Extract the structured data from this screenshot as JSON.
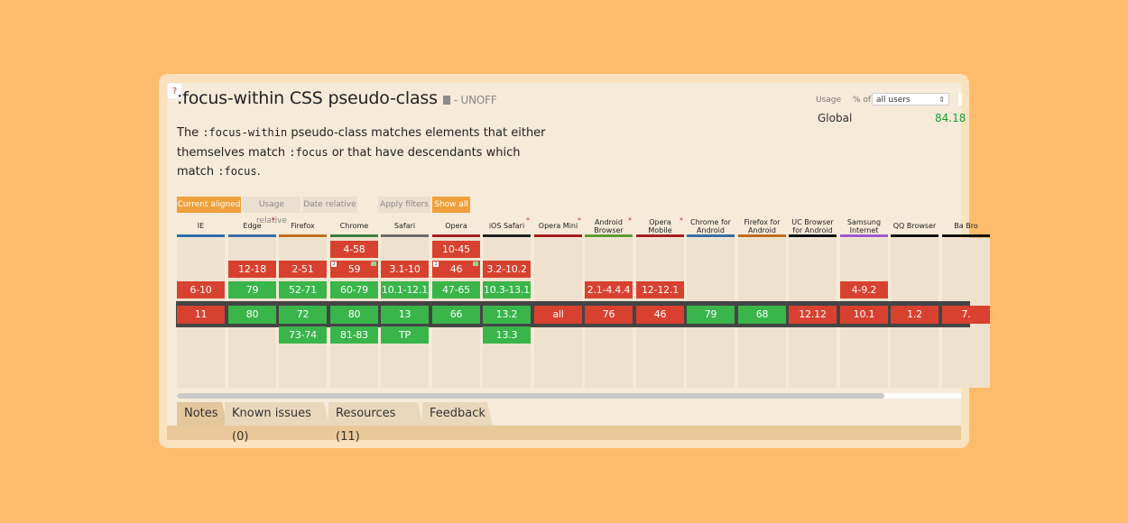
{
  "feature": {
    "title": ":focus-within CSS pseudo-class",
    "status": "- UNOFF",
    "desc": {
      "p1": "The ",
      "c1": ":focus-within",
      "p2": " pseudo-class matches elements that either themselves match ",
      "c2": ":focus",
      "p3": " or that have descendants which match ",
      "c3": ":focus",
      "p4": "."
    }
  },
  "usage": {
    "label": "Usage",
    "pct_label": "% of",
    "select": "all users",
    "global_label": "Global",
    "global_value": "84.18"
  },
  "view_buttons": {
    "current": "Current aligned",
    "usage": "Usage relative",
    "date": "Date relative",
    "apply": "Apply filters",
    "show": "Show all",
    "help": "?"
  },
  "colors": {
    "supported": "#39b54a",
    "unsupported": "#d8412f",
    "accent": "#f0a03a",
    "background": "#ffbb6c"
  },
  "browsers": [
    {
      "name": "IE",
      "bar": "#2b6cb0",
      "asterisk": false,
      "versions": [
        {
          "v": "6-10",
          "s": "n",
          "row": 3
        },
        {
          "v": "11",
          "s": "n",
          "row": 4
        }
      ]
    },
    {
      "name": "Edge",
      "bar": "#3a6ea5",
      "asterisk": true,
      "versions": [
        {
          "v": "12-18",
          "s": "n",
          "row": 2
        },
        {
          "v": "79",
          "s": "y",
          "row": 3
        },
        {
          "v": "80",
          "s": "y",
          "row": 4
        }
      ]
    },
    {
      "name": "Firefox",
      "bar": "#c26b1e",
      "asterisk": false,
      "versions": [
        {
          "v": "2-51",
          "s": "n",
          "row": 2
        },
        {
          "v": "52-71",
          "s": "y",
          "row": 3
        },
        {
          "v": "72",
          "s": "y",
          "row": 4
        },
        {
          "v": "73-74",
          "s": "y",
          "row": 5
        }
      ]
    },
    {
      "name": "Chrome",
      "bar": "#3b7d3e",
      "asterisk": false,
      "versions": [
        {
          "v": "4-58",
          "s": "n",
          "row": 1
        },
        {
          "v": "59",
          "s": "n",
          "row": 2,
          "flag": "1"
        },
        {
          "v": "60-79",
          "s": "y",
          "row": 3
        },
        {
          "v": "80",
          "s": "y",
          "row": 4
        },
        {
          "v": "81-83",
          "s": "y",
          "row": 5
        }
      ]
    },
    {
      "name": "Safari",
      "bar": "#6b6b6b",
      "asterisk": false,
      "versions": [
        {
          "v": "3.1-10",
          "s": "n",
          "row": 2
        },
        {
          "v": "10.1-12.1",
          "s": "y",
          "row": 3
        },
        {
          "v": "13",
          "s": "y",
          "row": 4
        },
        {
          "v": "TP",
          "s": "y",
          "row": 5
        }
      ]
    },
    {
      "name": "Opera",
      "bar": "#a81d1d",
      "asterisk": false,
      "versions": [
        {
          "v": "10-45",
          "s": "n",
          "row": 1
        },
        {
          "v": "46",
          "s": "n",
          "row": 2,
          "flag": "1"
        },
        {
          "v": "47-65",
          "s": "y",
          "row": 3
        },
        {
          "v": "66",
          "s": "y",
          "row": 4
        }
      ]
    },
    {
      "name": "iOS Safari",
      "bar": "#222222",
      "asterisk": true,
      "versions": [
        {
          "v": "3.2-10.2",
          "s": "n",
          "row": 2
        },
        {
          "v": "10.3-13.1",
          "s": "y",
          "row": 3
        },
        {
          "v": "13.2",
          "s": "y",
          "row": 4
        },
        {
          "v": "13.3",
          "s": "y",
          "row": 5
        }
      ]
    },
    {
      "name": "Opera Mini",
      "bar": "#a81d1d",
      "asterisk": true,
      "versions": [
        {
          "v": "all",
          "s": "n",
          "row": 4
        }
      ]
    },
    {
      "name": "Android Browser",
      "bar": "#5c9e32",
      "asterisk": true,
      "versions": [
        {
          "v": "2.1-4.4.4",
          "s": "n",
          "row": 3
        },
        {
          "v": "76",
          "s": "n",
          "row": 4
        }
      ]
    },
    {
      "name": "Opera Mobile",
      "bar": "#a81d1d",
      "asterisk": true,
      "versions": [
        {
          "v": "12-12.1",
          "s": "n",
          "row": 3
        },
        {
          "v": "46",
          "s": "n",
          "row": 4
        }
      ]
    },
    {
      "name": "Chrome for Android",
      "bar": "#3a6ea5",
      "asterisk": false,
      "versions": [
        {
          "v": "79",
          "s": "y",
          "row": 4
        }
      ]
    },
    {
      "name": "Firefox for Android",
      "bar": "#c26b1e",
      "asterisk": false,
      "versions": [
        {
          "v": "68",
          "s": "y",
          "row": 4
        }
      ]
    },
    {
      "name": "UC Browser for Android",
      "bar": "#111111",
      "asterisk": false,
      "versions": [
        {
          "v": "12.12",
          "s": "n",
          "row": 4
        }
      ]
    },
    {
      "name": "Samsung Internet",
      "bar": "#9b59d0",
      "asterisk": false,
      "versions": [
        {
          "v": "4-9.2",
          "s": "n",
          "row": 3
        },
        {
          "v": "10.1",
          "s": "n",
          "row": 4
        }
      ]
    },
    {
      "name": "QQ Browser",
      "bar": "#111111",
      "asterisk": false,
      "versions": [
        {
          "v": "1.2",
          "s": "n",
          "row": 4
        }
      ]
    },
    {
      "name": "Ba Bro",
      "bar": "#111111",
      "asterisk": false,
      "versions": [
        {
          "v": "7.",
          "s": "n",
          "row": 4
        }
      ]
    }
  ],
  "tabs": [
    "Notes",
    "Known issues (0)",
    "Resources (11)",
    "Feedback"
  ]
}
